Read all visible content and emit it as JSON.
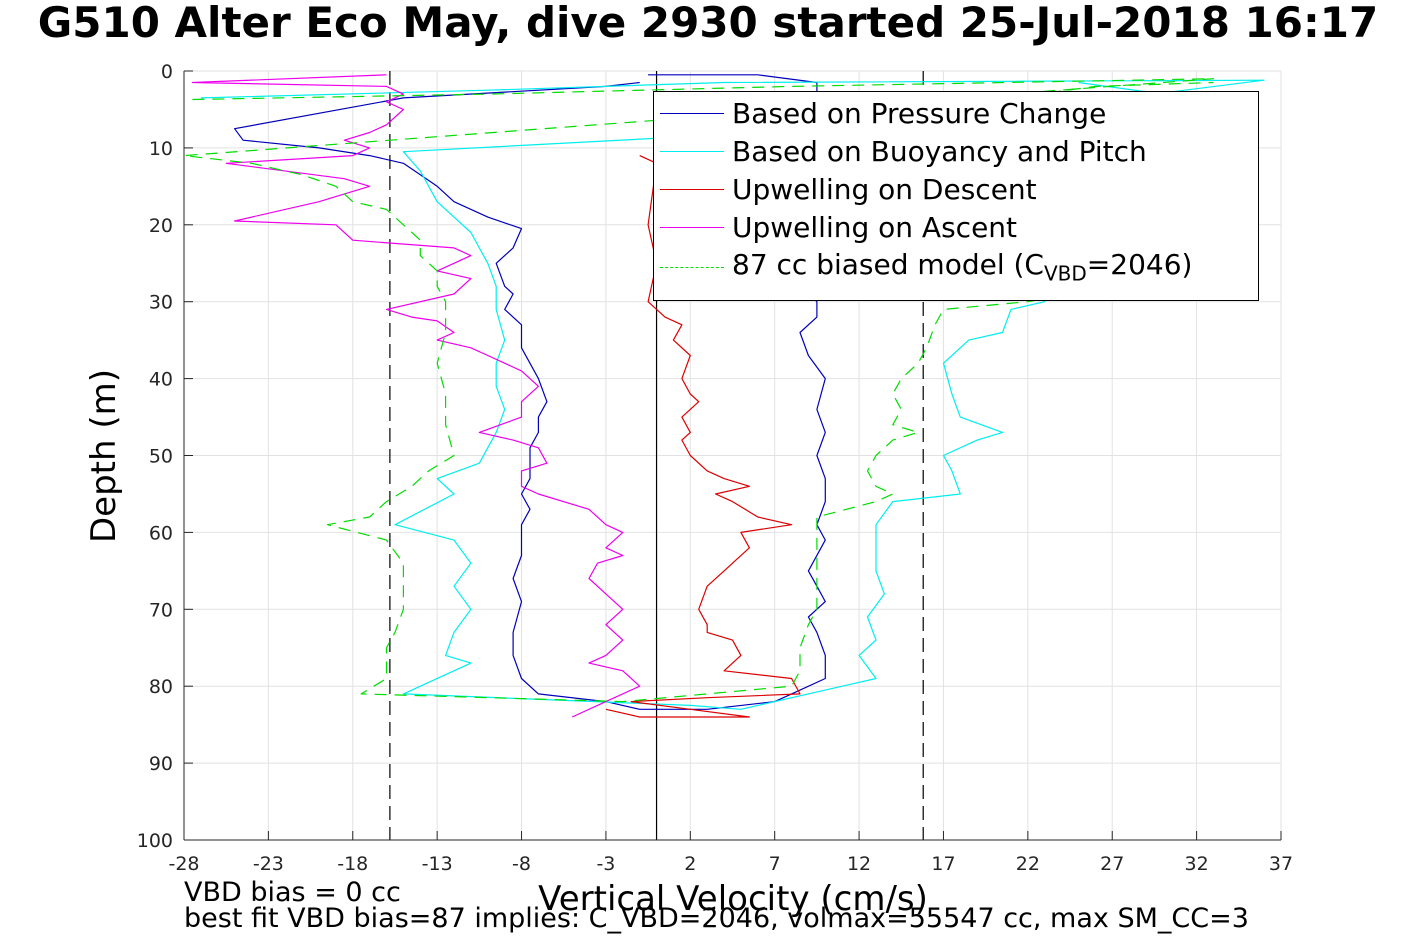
{
  "title": "G510 Alter Eco May, dive 2930 started 25-Jul-2018 16:17",
  "notes": {
    "vbd_bias": "VBD bias = 0 cc",
    "best_fit": "best fit VBD bias=87 implies: C_VBD=2046, volmax=55547 cc, max SM_CC=3"
  },
  "legend_entries": [
    {
      "label": "Based on Pressure Change",
      "color": "#0000bb",
      "dash": "none"
    },
    {
      "label": "Based on Buoyancy and Pitch",
      "color": "#00eeee",
      "dash": "none"
    },
    {
      "label": "Upwelling on Descent",
      "color": "#dd0000",
      "dash": "none"
    },
    {
      "label": "Upwelling on Ascent",
      "color": "#ee00ee",
      "dash": "none"
    },
    {
      "label_prefix": "87 cc biased model (C",
      "label_sub": "VBD",
      "label_suffix": "=2046)",
      "color": "#00dd00",
      "dash": "12,8"
    }
  ],
  "chart_data": {
    "type": "line",
    "title": "G510 Alter Eco May, dive 2930 started 25-Jul-2018 16:17",
    "xlabel": "Vertical Velocity (cm/s)",
    "ylabel": "Depth (m)",
    "xlim": [
      -28,
      37
    ],
    "ylim": [
      0,
      100
    ],
    "y_reversed": true,
    "grid": true,
    "legend_position": "top-right",
    "x_ticks": [
      -28,
      -23,
      -18,
      -13,
      -8,
      -3,
      2,
      7,
      12,
      17,
      22,
      27,
      32,
      37
    ],
    "y_ticks": [
      0,
      10,
      20,
      30,
      40,
      50,
      60,
      70,
      80,
      90,
      100
    ],
    "reference_lines": [
      {
        "x": -15.8,
        "style": "dashed",
        "color": "#000000"
      },
      {
        "x": 0,
        "style": "solid",
        "color": "#000000"
      },
      {
        "x": 15.8,
        "style": "dashed",
        "color": "#000000"
      }
    ],
    "series": [
      {
        "name": "Based on Pressure Change",
        "color": "#0000bb",
        "dash": "none",
        "points": [
          [
            -1,
            1.5
          ],
          [
            -3,
            2
          ],
          [
            -15,
            3.5
          ],
          [
            -25,
            7.5
          ],
          [
            -24.5,
            9
          ],
          [
            -20,
            10
          ],
          [
            -17,
            11
          ],
          [
            -15,
            12
          ],
          [
            -13,
            15
          ],
          [
            -12,
            17
          ],
          [
            -10,
            19
          ],
          [
            -8,
            20.5
          ],
          [
            -8.5,
            23
          ],
          [
            -9.5,
            25
          ],
          [
            -9,
            28
          ],
          [
            -8.5,
            29
          ],
          [
            -9,
            31
          ],
          [
            -8,
            33
          ],
          [
            -8,
            36
          ],
          [
            -7,
            40
          ],
          [
            -6.5,
            43
          ],
          [
            -7,
            45
          ],
          [
            -7,
            47
          ],
          [
            -7.5,
            49
          ],
          [
            -7.5,
            53
          ],
          [
            -8,
            55
          ],
          [
            -7.5,
            57
          ],
          [
            -8,
            59
          ],
          [
            -8,
            63
          ],
          [
            -8.5,
            66
          ],
          [
            -8,
            69
          ],
          [
            -8.5,
            73
          ],
          [
            -8.5,
            76
          ],
          [
            -8,
            79
          ],
          [
            -7,
            81
          ],
          [
            -3,
            82
          ],
          [
            -1,
            83
          ],
          [
            3,
            83
          ],
          [
            7,
            82
          ],
          [
            8,
            81
          ],
          [
            10,
            79
          ],
          [
            10,
            76
          ],
          [
            9.5,
            73
          ],
          [
            9,
            71
          ],
          [
            10,
            69
          ],
          [
            9.5,
            67
          ],
          [
            9,
            65
          ],
          [
            10,
            61
          ],
          [
            9.5,
            59
          ],
          [
            10,
            56
          ],
          [
            10,
            53
          ],
          [
            9.5,
            50
          ],
          [
            10,
            47
          ],
          [
            9.5,
            44
          ],
          [
            10,
            40
          ],
          [
            9,
            37
          ],
          [
            8.5,
            34
          ],
          [
            9.5,
            32
          ],
          [
            9.5,
            30
          ],
          [
            8,
            27
          ],
          [
            6,
            25
          ],
          [
            3,
            22
          ],
          [
            1,
            15
          ],
          [
            4,
            12
          ],
          [
            8,
            10
          ],
          [
            9.5,
            5
          ],
          [
            9.5,
            1.5
          ],
          [
            6,
            0.5
          ],
          [
            -0.5,
            0.5
          ]
        ]
      },
      {
        "name": "Based on Buoyancy and Pitch",
        "color": "#00eeee",
        "dash": "none",
        "points": [
          [
            -27,
            3.5
          ],
          [
            -10,
            2.5
          ],
          [
            4,
            1.5
          ],
          [
            36,
            1.2
          ],
          [
            15,
            7
          ],
          [
            -15,
            10.5
          ],
          [
            -14,
            13
          ],
          [
            -13.5,
            15
          ],
          [
            -13,
            17
          ],
          [
            -12,
            19
          ],
          [
            -11,
            21
          ],
          [
            -10.5,
            23
          ],
          [
            -10,
            25
          ],
          [
            -9.5,
            28
          ],
          [
            -9.5,
            31
          ],
          [
            -9,
            35
          ],
          [
            -9.5,
            38
          ],
          [
            -9.5,
            41
          ],
          [
            -9,
            44
          ],
          [
            -9.5,
            47
          ],
          [
            -10.5,
            51
          ],
          [
            -13,
            53
          ],
          [
            -12,
            55
          ],
          [
            -15.5,
            59
          ],
          [
            -12,
            61
          ],
          [
            -11,
            64
          ],
          [
            -12,
            67
          ],
          [
            -11,
            70
          ],
          [
            -12,
            73
          ],
          [
            -12.5,
            76
          ],
          [
            -11,
            77
          ],
          [
            -15,
            81
          ],
          [
            2,
            82.5
          ],
          [
            5,
            83
          ],
          [
            11,
            80
          ],
          [
            13,
            79
          ],
          [
            12,
            76
          ],
          [
            13,
            74
          ],
          [
            12.5,
            71
          ],
          [
            13.5,
            68
          ],
          [
            13,
            65
          ],
          [
            13,
            61
          ],
          [
            13,
            59
          ],
          [
            14,
            56
          ],
          [
            18,
            55
          ],
          [
            17.5,
            52
          ],
          [
            17,
            50
          ],
          [
            19,
            48
          ],
          [
            20.5,
            47
          ],
          [
            18,
            45
          ],
          [
            17.5,
            42
          ],
          [
            17,
            38
          ],
          [
            18.5,
            35
          ],
          [
            20.5,
            34
          ],
          [
            21,
            31
          ],
          [
            23,
            30
          ],
          [
            19,
            20
          ],
          [
            14,
            12
          ],
          [
            12,
            8
          ],
          [
            20,
            5
          ],
          [
            30,
            3
          ],
          [
            25,
            1.5
          ]
        ]
      },
      {
        "name": "Upwelling on Descent",
        "color": "#dd0000",
        "dash": "none",
        "points": [
          [
            -1,
            11
          ],
          [
            0,
            12
          ],
          [
            -0.5,
            20
          ],
          [
            0,
            25
          ],
          [
            -0.5,
            30
          ],
          [
            0.5,
            32
          ],
          [
            1.5,
            33
          ],
          [
            1,
            35
          ],
          [
            2,
            37
          ],
          [
            1.5,
            40
          ],
          [
            2,
            42
          ],
          [
            2.5,
            43
          ],
          [
            1.5,
            45
          ],
          [
            2,
            47
          ],
          [
            1.5,
            48
          ],
          [
            2,
            50
          ],
          [
            3,
            52
          ],
          [
            4,
            53
          ],
          [
            5.5,
            54
          ],
          [
            3.5,
            55
          ],
          [
            4.5,
            56
          ],
          [
            6,
            58
          ],
          [
            8,
            59
          ],
          [
            5,
            60
          ],
          [
            5.5,
            62
          ],
          [
            4.5,
            64
          ],
          [
            4,
            65
          ],
          [
            3,
            67
          ],
          [
            2.5,
            70
          ],
          [
            3,
            72
          ],
          [
            3,
            73
          ],
          [
            4.5,
            74
          ],
          [
            5,
            76
          ],
          [
            4,
            78
          ],
          [
            8,
            79
          ],
          [
            8.5,
            81
          ],
          [
            3,
            81.5
          ],
          [
            -1.5,
            82
          ],
          [
            2,
            83
          ],
          [
            5.5,
            84
          ],
          [
            -1,
            84
          ],
          [
            -3,
            83
          ]
        ]
      },
      {
        "name": "Upwelling on Ascent",
        "color": "#ee00ee",
        "dash": "none",
        "points": [
          [
            -16,
            0.5
          ],
          [
            -27.5,
            1.5
          ],
          [
            -16,
            2
          ],
          [
            -15,
            3
          ],
          [
            -16,
            4
          ],
          [
            -15,
            5
          ],
          [
            -16,
            7
          ],
          [
            -17,
            8
          ],
          [
            -18.5,
            9
          ],
          [
            -17,
            10
          ],
          [
            -18,
            11
          ],
          [
            -25.5,
            12
          ],
          [
            -18.5,
            14
          ],
          [
            -17,
            15
          ],
          [
            -20,
            17
          ],
          [
            -25,
            19.5
          ],
          [
            -19,
            20
          ],
          [
            -18,
            22
          ],
          [
            -12,
            23
          ],
          [
            -11,
            24
          ],
          [
            -12,
            25
          ],
          [
            -13,
            26
          ],
          [
            -11,
            27
          ],
          [
            -12,
            29
          ],
          [
            -16,
            31
          ],
          [
            -14.5,
            32
          ],
          [
            -13,
            32.5
          ],
          [
            -12,
            34
          ],
          [
            -13,
            35
          ],
          [
            -11,
            36
          ],
          [
            -10,
            37
          ],
          [
            -8,
            39
          ],
          [
            -7,
            41
          ],
          [
            -8,
            43
          ],
          [
            -8,
            45
          ],
          [
            -10.5,
            47
          ],
          [
            -8.5,
            48
          ],
          [
            -7,
            49
          ],
          [
            -6.5,
            51
          ],
          [
            -8,
            52
          ],
          [
            -8,
            54
          ],
          [
            -7,
            55
          ],
          [
            -4,
            57
          ],
          [
            -3,
            59
          ],
          [
            -2,
            60
          ],
          [
            -3,
            62
          ],
          [
            -2,
            63
          ],
          [
            -3.5,
            64
          ],
          [
            -4,
            66
          ],
          [
            -3,
            68
          ],
          [
            -2,
            70
          ],
          [
            -3,
            72
          ],
          [
            -2,
            74
          ],
          [
            -3,
            76
          ],
          [
            -4,
            77
          ],
          [
            -2,
            78
          ],
          [
            -1,
            80
          ],
          [
            -3,
            82
          ],
          [
            -5,
            84
          ]
        ]
      },
      {
        "name": "87 cc biased model (C_VBD=2046)",
        "color": "#00dd00",
        "dash": "12,8",
        "points": [
          [
            -27.5,
            3.7
          ],
          [
            -10,
            3
          ],
          [
            8,
            2
          ],
          [
            33,
            1
          ],
          [
            -28,
            11
          ],
          [
            -24,
            12
          ],
          [
            -21,
            13.5
          ],
          [
            -19,
            15
          ],
          [
            -18,
            17
          ],
          [
            -16,
            18
          ],
          [
            -15,
            20
          ],
          [
            -14,
            22
          ],
          [
            -14,
            24
          ],
          [
            -13,
            26
          ],
          [
            -13,
            28
          ],
          [
            -12.5,
            30
          ],
          [
            -12.5,
            34
          ],
          [
            -13,
            38
          ],
          [
            -12.5,
            42
          ],
          [
            -12.5,
            46
          ],
          [
            -12,
            50
          ],
          [
            -13.5,
            52
          ],
          [
            -14.5,
            54
          ],
          [
            -16,
            56
          ],
          [
            -17,
            58
          ],
          [
            -19.5,
            59
          ],
          [
            -16,
            61
          ],
          [
            -15,
            64
          ],
          [
            -15,
            67
          ],
          [
            -15,
            70
          ],
          [
            -15.5,
            73
          ],
          [
            -16,
            75
          ],
          [
            -16,
            77
          ],
          [
            -16,
            79
          ],
          [
            -17.5,
            81
          ],
          [
            -2,
            82
          ],
          [
            8,
            80
          ],
          [
            8.5,
            78
          ],
          [
            8.5,
            75
          ],
          [
            9,
            72
          ],
          [
            9.5,
            70
          ],
          [
            9.5,
            66
          ],
          [
            9.5,
            61
          ],
          [
            9.5,
            58
          ],
          [
            13,
            56
          ],
          [
            14,
            55
          ],
          [
            13,
            54
          ],
          [
            12.5,
            52
          ],
          [
            13,
            50
          ],
          [
            14,
            48
          ],
          [
            15.5,
            47
          ],
          [
            14,
            46
          ],
          [
            14.5,
            44
          ],
          [
            14,
            42
          ],
          [
            14.5,
            40
          ],
          [
            15.5,
            38
          ],
          [
            16,
            36
          ],
          [
            16.5,
            33
          ],
          [
            17,
            31
          ],
          [
            22,
            30
          ],
          [
            27,
            28
          ],
          [
            20,
            22
          ],
          [
            15,
            16
          ],
          [
            12,
            10
          ],
          [
            16,
            5
          ],
          [
            26,
            2
          ],
          [
            33,
            1.5
          ]
        ]
      }
    ]
  }
}
